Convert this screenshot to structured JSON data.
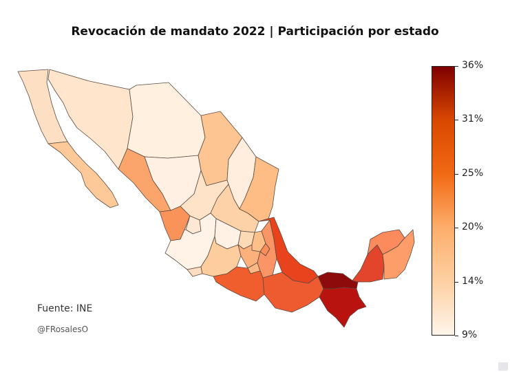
{
  "title": "Revocación de mandato 2022 | Participación por estado",
  "source": "Fuente: INE",
  "credit": "@FRosalesO",
  "legend": {
    "type": "colorbar",
    "min": 9,
    "max": 36,
    "ticks": [
      "36%",
      "31%",
      "25%",
      "20%",
      "14%",
      "9%"
    ],
    "colors": [
      "#fff5eb",
      "#fdd0a2",
      "#fdae6b",
      "#f16913",
      "#d94801",
      "#7f0000"
    ]
  },
  "regions": [
    {
      "name": "Baja California",
      "color": "#fde0c3"
    },
    {
      "name": "Baja California Sur",
      "color": "#fdc998"
    },
    {
      "name": "Sonora",
      "color": "#fee5cc"
    },
    {
      "name": "Chihuahua",
      "color": "#fff0e0"
    },
    {
      "name": "Coahuila",
      "color": "#fdc591"
    },
    {
      "name": "Nuevo León",
      "color": "#ffeedd"
    },
    {
      "name": "Tamaulipas",
      "color": "#fdbd85"
    },
    {
      "name": "Sinaloa",
      "color": "#fba46c"
    },
    {
      "name": "Durango",
      "color": "#fff0e3"
    },
    {
      "name": "Zacatecas",
      "color": "#fee3c8"
    },
    {
      "name": "San Luis Potosí",
      "color": "#fdd2a8"
    },
    {
      "name": "Nayarit",
      "color": "#f9935a"
    },
    {
      "name": "Jalisco",
      "color": "#fff2e6"
    },
    {
      "name": "Aguascalientes",
      "color": "#fde8d3"
    },
    {
      "name": "Guanajuato",
      "color": "#fff2e5"
    },
    {
      "name": "Querétaro",
      "color": "#fdd9b5"
    },
    {
      "name": "Hidalgo",
      "color": "#fdc089"
    },
    {
      "name": "Veracruz",
      "color": "#e8431d"
    },
    {
      "name": "Colima",
      "color": "#fddcbf"
    },
    {
      "name": "Michoacán",
      "color": "#fdcd9e"
    },
    {
      "name": "Estado de México",
      "color": "#fcb17c"
    },
    {
      "name": "Tlaxcala",
      "color": "#fb8d5a"
    },
    {
      "name": "Puebla",
      "color": "#fb9566"
    },
    {
      "name": "Morelos",
      "color": "#fcb983"
    },
    {
      "name": "Guerrero",
      "color": "#f15e2e"
    },
    {
      "name": "Oaxaca",
      "color": "#ef5b31"
    },
    {
      "name": "Tabasco",
      "color": "#8d0b0b"
    },
    {
      "name": "Chiapas",
      "color": "#b8130f"
    },
    {
      "name": "Campeche",
      "color": "#e2452c"
    },
    {
      "name": "Yucatán",
      "color": "#fb8a5c"
    },
    {
      "name": "Quintana Roo",
      "color": "#fd9d6a"
    }
  ]
}
